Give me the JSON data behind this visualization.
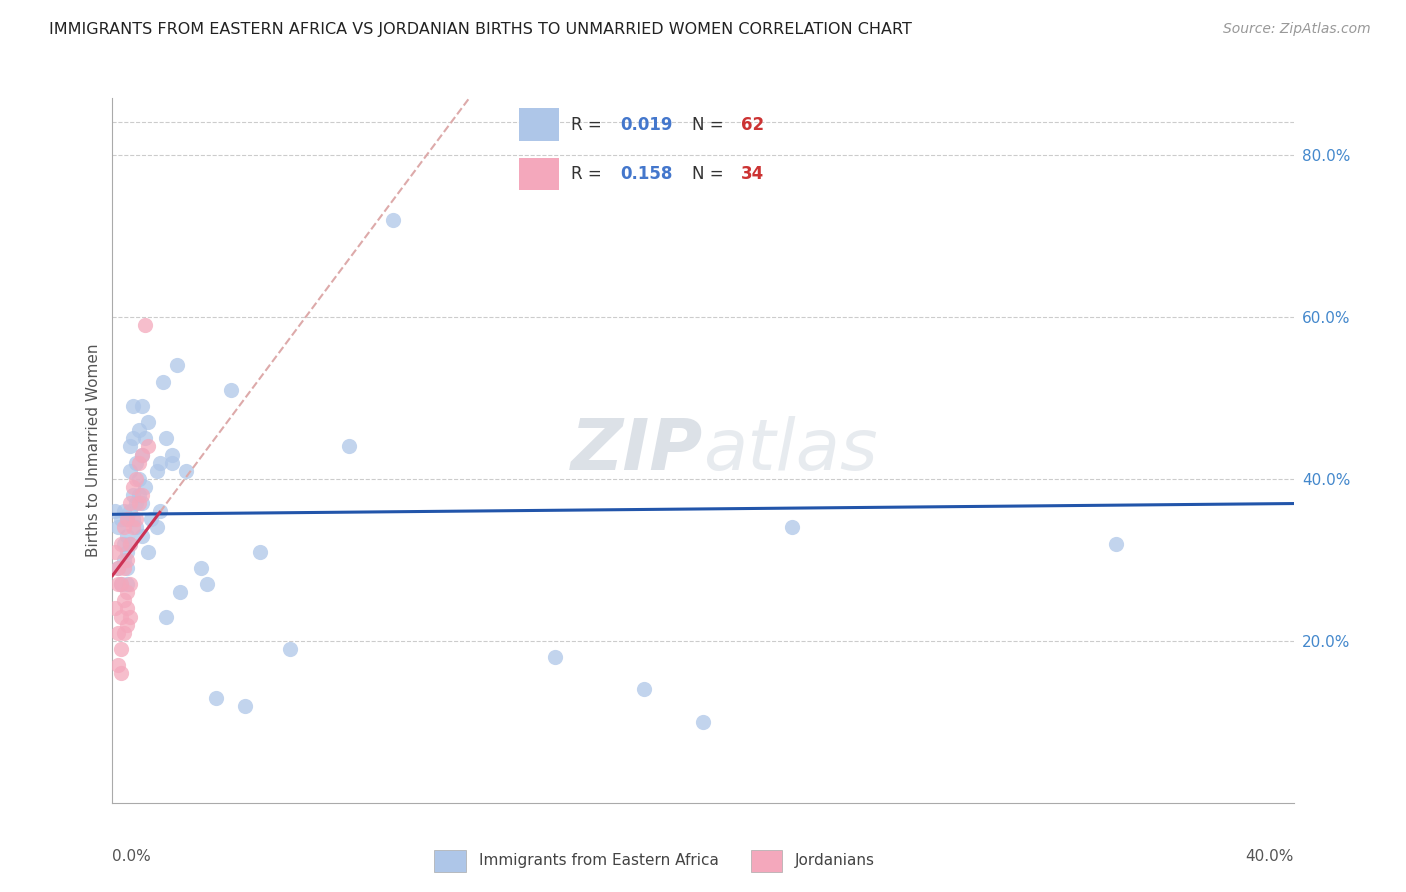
{
  "title": "IMMIGRANTS FROM EASTERN AFRICA VS JORDANIAN BIRTHS TO UNMARRIED WOMEN CORRELATION CHART",
  "source": "Source: ZipAtlas.com",
  "ylabel": "Births to Unmarried Women",
  "xlim": [
    0.0,
    0.4
  ],
  "ylim": [
    0.0,
    0.87
  ],
  "yticks": [
    0.2,
    0.4,
    0.6,
    0.8
  ],
  "ytick_labels": [
    "20.0%",
    "40.0%",
    "60.0%",
    "80.0%"
  ],
  "blue_color": "#aec6e8",
  "pink_color": "#f4a8bc",
  "blue_line_color": "#2255aa",
  "pink_line_color": "#cc3355",
  "pink_dash_color": "#ddaaaa",
  "watermark_zip": "ZIP",
  "watermark_atlas": "atlas",
  "gridline_color": "#cccccc",
  "background_color": "#ffffff",
  "blue_dots_x": [
    0.001,
    0.002,
    0.002,
    0.003,
    0.003,
    0.004,
    0.004,
    0.004,
    0.005,
    0.005,
    0.005,
    0.005,
    0.006,
    0.006,
    0.006,
    0.007,
    0.007,
    0.007,
    0.008,
    0.008,
    0.008,
    0.009,
    0.009,
    0.01,
    0.01,
    0.01,
    0.011,
    0.011,
    0.012,
    0.013,
    0.015,
    0.016,
    0.016,
    0.017,
    0.018,
    0.02,
    0.022,
    0.023,
    0.025,
    0.03,
    0.032,
    0.035,
    0.04,
    0.045,
    0.05,
    0.06,
    0.08,
    0.095,
    0.15,
    0.18,
    0.2,
    0.23,
    0.34,
    0.005,
    0.006,
    0.007,
    0.009,
    0.01,
    0.012,
    0.015,
    0.018,
    0.02
  ],
  "blue_dots_y": [
    0.36,
    0.34,
    0.29,
    0.35,
    0.27,
    0.36,
    0.32,
    0.3,
    0.35,
    0.33,
    0.29,
    0.27,
    0.44,
    0.41,
    0.36,
    0.49,
    0.45,
    0.38,
    0.42,
    0.37,
    0.34,
    0.46,
    0.4,
    0.49,
    0.43,
    0.37,
    0.45,
    0.39,
    0.47,
    0.35,
    0.41,
    0.42,
    0.36,
    0.52,
    0.45,
    0.43,
    0.54,
    0.26,
    0.41,
    0.29,
    0.27,
    0.13,
    0.51,
    0.12,
    0.31,
    0.19,
    0.44,
    0.72,
    0.18,
    0.14,
    0.1,
    0.34,
    0.32,
    0.31,
    0.32,
    0.35,
    0.38,
    0.33,
    0.31,
    0.34,
    0.23,
    0.42
  ],
  "pink_dots_x": [
    0.001,
    0.001,
    0.002,
    0.002,
    0.002,
    0.003,
    0.003,
    0.003,
    0.003,
    0.004,
    0.004,
    0.004,
    0.005,
    0.005,
    0.005,
    0.005,
    0.006,
    0.006,
    0.006,
    0.007,
    0.007,
    0.008,
    0.008,
    0.009,
    0.009,
    0.01,
    0.01,
    0.011,
    0.012,
    0.002,
    0.003,
    0.004,
    0.005,
    0.006
  ],
  "pink_dots_y": [
    0.24,
    0.31,
    0.27,
    0.29,
    0.21,
    0.32,
    0.27,
    0.23,
    0.19,
    0.34,
    0.29,
    0.25,
    0.35,
    0.3,
    0.26,
    0.22,
    0.37,
    0.32,
    0.27,
    0.39,
    0.34,
    0.4,
    0.35,
    0.42,
    0.37,
    0.43,
    0.38,
    0.59,
    0.44,
    0.17,
    0.16,
    0.21,
    0.24,
    0.23
  ],
  "blue_R": 0.019,
  "blue_N": 62,
  "pink_R": 0.158,
  "pink_N": 34
}
